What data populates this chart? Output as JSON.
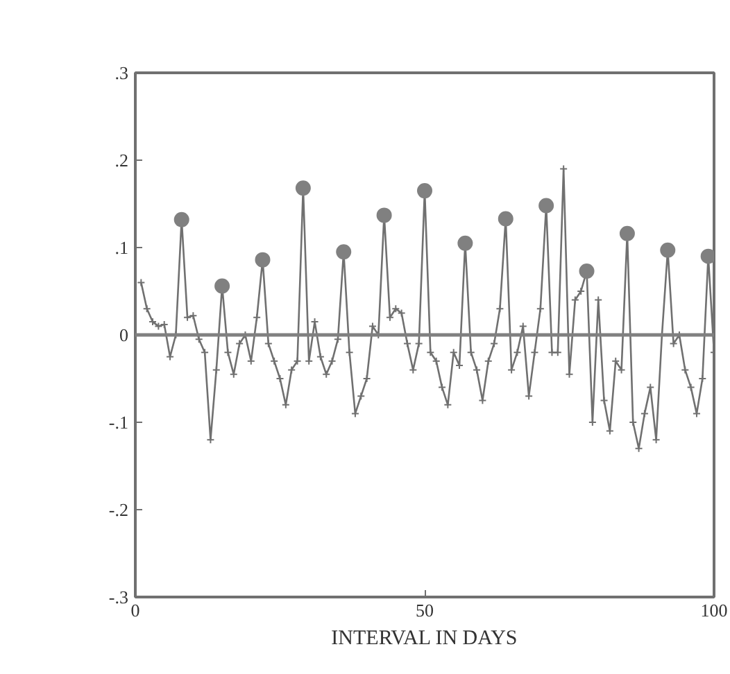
{
  "chart_data": {
    "type": "line",
    "xlabel": "INTERVAL IN DAYS",
    "xlim": [
      0,
      100
    ],
    "xticks": [
      0,
      50,
      100
    ],
    "ylim": [
      -0.3,
      0.3
    ],
    "yticks": [
      {
        "value": 0.3,
        "label": ".3"
      },
      {
        "value": 0.2,
        "label": ".2"
      },
      {
        "value": 0.1,
        "label": ".1"
      },
      0,
      {
        "value": -0.1,
        "label": "-.1"
      },
      {
        "value": -0.2,
        "label": "-.2"
      },
      {
        "value": -0.3,
        "label": "-.3"
      }
    ],
    "grid": false,
    "line_style": "solid",
    "ref_lines": [
      {
        "axis": "y",
        "value": 0,
        "color": "#808080"
      }
    ],
    "series": [
      {
        "color": "#707070",
        "marker": "cross",
        "x": [
          1,
          2,
          3,
          4,
          5,
          6,
          7,
          8,
          9,
          10,
          11,
          12,
          13,
          14,
          15,
          16,
          17,
          18,
          19,
          20,
          21,
          22,
          23,
          24,
          25,
          26,
          27,
          28,
          29,
          30,
          31,
          32,
          33,
          34,
          35,
          36,
          37,
          38,
          39,
          40,
          41,
          42,
          43,
          44,
          45,
          46,
          47,
          48,
          49,
          50,
          51,
          52,
          53,
          54,
          55,
          56,
          57,
          58,
          59,
          60,
          61,
          62,
          63,
          64,
          65,
          66,
          67,
          68,
          69,
          70,
          71,
          72,
          73,
          74,
          75,
          76,
          77,
          78,
          79,
          80,
          81,
          82,
          83,
          84,
          85,
          86,
          87,
          88,
          89,
          90,
          91,
          92,
          93,
          94,
          95,
          96,
          97,
          98,
          99,
          100
        ],
        "values": [
          0.06,
          0.03,
          0.015,
          0.01,
          0.012,
          -0.025,
          0.0,
          0.132,
          0.02,
          0.022,
          -0.005,
          -0.02,
          -0.12,
          -0.04,
          0.056,
          -0.02,
          -0.045,
          -0.01,
          0.0,
          -0.03,
          0.02,
          0.086,
          -0.01,
          -0.03,
          -0.05,
          -0.08,
          -0.04,
          -0.03,
          0.168,
          -0.03,
          0.015,
          -0.025,
          -0.045,
          -0.03,
          -0.005,
          0.095,
          -0.02,
          -0.09,
          -0.07,
          -0.05,
          0.01,
          0.0,
          0.137,
          0.02,
          0.03,
          0.025,
          -0.01,
          -0.04,
          -0.01,
          0.165,
          -0.02,
          -0.03,
          -0.06,
          -0.08,
          -0.02,
          -0.035,
          0.105,
          -0.02,
          -0.04,
          -0.075,
          -0.03,
          -0.01,
          0.03,
          0.133,
          -0.04,
          -0.02,
          0.01,
          -0.07,
          -0.02,
          0.03,
          0.148,
          -0.02,
          -0.02,
          0.19,
          -0.045,
          0.04,
          0.05,
          0.073,
          -0.1,
          0.04,
          -0.075,
          -0.11,
          -0.03,
          -0.04,
          0.116,
          -0.1,
          -0.13,
          -0.09,
          -0.06,
          -0.12,
          0.0,
          0.097,
          -0.01,
          0.0,
          -0.04,
          -0.06,
          -0.09,
          -0.05,
          0.09,
          -0.02
        ]
      },
      {
        "type": "scatter",
        "color": "#808080",
        "marker": "circle",
        "x": [
          8,
          15,
          22,
          29,
          36,
          43,
          50,
          57,
          64,
          71,
          78,
          85,
          92,
          99
        ],
        "values": [
          0.132,
          0.056,
          0.086,
          0.168,
          0.095,
          0.137,
          0.165,
          0.105,
          0.133,
          0.148,
          0.073,
          0.116,
          0.097,
          0.09
        ]
      }
    ]
  }
}
